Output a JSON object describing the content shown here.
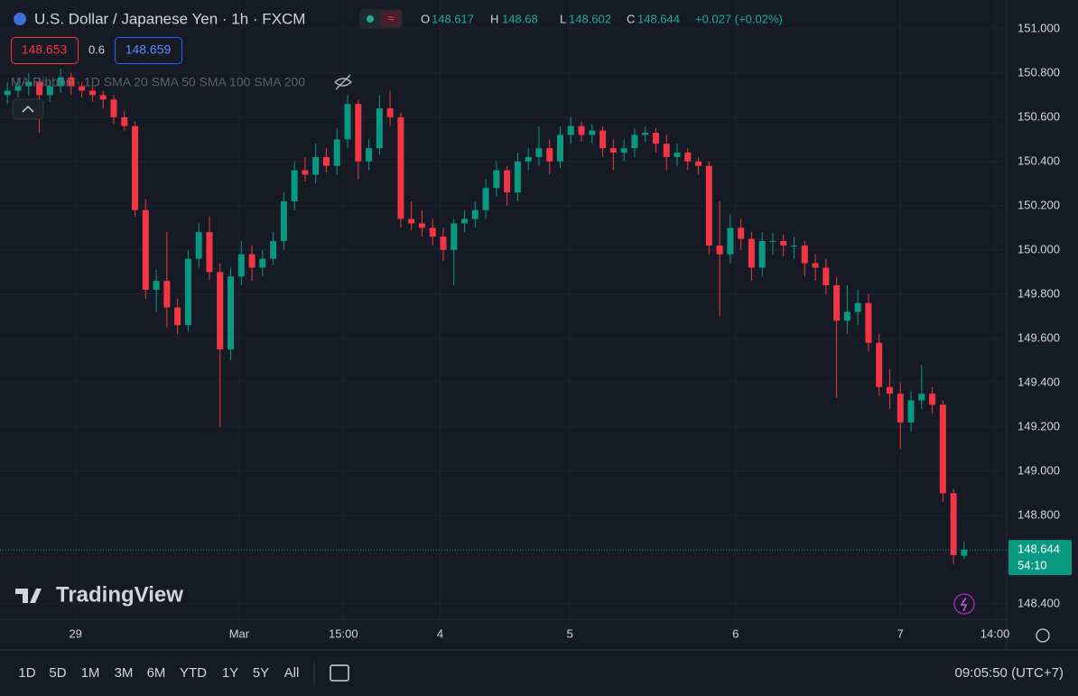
{
  "chart_data": {
    "type": "candlestick",
    "title": "U.S. Dollar / Japanese Yen · 1h · FXCM",
    "header": {
      "open_label": "O",
      "open": 148.617,
      "high_label": "H",
      "high": 148.68,
      "low_label": "L",
      "low": 148.602,
      "close_label": "C",
      "close": 148.644,
      "change": "+0.027 (+0.02%)"
    },
    "bid": "148.653",
    "spread": "0.6",
    "ask": "148.659",
    "indicator": "MA Ribbon · 1D SMA 20 SMA 50 SMA 100 SMA 200",
    "countdown": "54:10",
    "watermark": "TradingView",
    "up_color": "#089981",
    "down_color": "#f23645",
    "grid": true,
    "ylim": [
      148.33,
      151.13
    ],
    "yticks": [
      {
        "value": 151.0,
        "label": "151.000"
      },
      {
        "value": 150.8,
        "label": "150.800"
      },
      {
        "value": 150.6,
        "label": "150.600"
      },
      {
        "value": 150.4,
        "label": "150.400"
      },
      {
        "value": 150.2,
        "label": "150.200"
      },
      {
        "value": 150.0,
        "label": "150.000"
      },
      {
        "value": 149.8,
        "label": "149.800"
      },
      {
        "value": 149.6,
        "label": "149.600"
      },
      {
        "value": 149.4,
        "label": "149.400"
      },
      {
        "value": 149.2,
        "label": "149.200"
      },
      {
        "value": 149.0,
        "label": "149.000"
      },
      {
        "value": 148.8,
        "label": "148.800"
      },
      {
        "value": 148.4,
        "label": "148.400"
      }
    ],
    "xlim": [
      -0.7,
      94
    ],
    "xticks": [
      {
        "value": 6.4,
        "label": "29"
      },
      {
        "value": 21.8,
        "label": "Mar"
      },
      {
        "value": 31.6,
        "label": "15:00"
      },
      {
        "value": 40.7,
        "label": "4"
      },
      {
        "value": 52.9,
        "label": "5"
      },
      {
        "value": 68.5,
        "label": "6"
      },
      {
        "value": 84,
        "label": "7"
      },
      {
        "value": 92.9,
        "label": "14:00"
      }
    ],
    "candles": [
      [
        150.7,
        150.76,
        150.66,
        150.72
      ],
      [
        150.72,
        150.78,
        150.69,
        150.74
      ],
      [
        150.74,
        150.8,
        150.7,
        150.76
      ],
      [
        150.76,
        150.78,
        150.53,
        150.7
      ],
      [
        150.7,
        150.77,
        150.67,
        150.74
      ],
      [
        150.74,
        150.82,
        150.71,
        150.78
      ],
      [
        150.78,
        150.8,
        150.7,
        150.74
      ],
      [
        150.74,
        150.76,
        150.69,
        150.72
      ],
      [
        150.72,
        150.74,
        150.67,
        150.7
      ],
      [
        150.7,
        150.72,
        150.64,
        150.68
      ],
      [
        150.68,
        150.7,
        150.57,
        150.6
      ],
      [
        150.6,
        150.63,
        150.54,
        150.56
      ],
      [
        150.56,
        150.58,
        150.15,
        150.18
      ],
      [
        150.18,
        150.23,
        149.78,
        149.82
      ],
      [
        149.82,
        149.91,
        149.72,
        149.86
      ],
      [
        149.86,
        150.08,
        149.65,
        149.74
      ],
      [
        149.74,
        149.78,
        149.62,
        149.66
      ],
      [
        149.66,
        150.0,
        149.63,
        149.96
      ],
      [
        149.96,
        150.12,
        149.92,
        150.08
      ],
      [
        150.08,
        150.15,
        149.86,
        149.9
      ],
      [
        149.9,
        149.94,
        149.2,
        149.55
      ],
      [
        149.55,
        149.92,
        149.5,
        149.88
      ],
      [
        149.88,
        150.04,
        149.84,
        149.98
      ],
      [
        149.98,
        150.02,
        149.86,
        149.92
      ],
      [
        149.92,
        150.0,
        149.88,
        149.96
      ],
      [
        149.96,
        150.08,
        149.93,
        150.04
      ],
      [
        150.04,
        150.26,
        150.0,
        150.22
      ],
      [
        150.22,
        150.4,
        150.18,
        150.36
      ],
      [
        150.36,
        150.42,
        150.31,
        150.34
      ],
      [
        150.34,
        150.48,
        150.3,
        150.42
      ],
      [
        150.42,
        150.46,
        150.35,
        150.38
      ],
      [
        150.38,
        150.55,
        150.34,
        150.5
      ],
      [
        150.5,
        150.7,
        150.46,
        150.66
      ],
      [
        150.66,
        150.68,
        150.32,
        150.4
      ],
      [
        150.4,
        150.5,
        150.36,
        150.46
      ],
      [
        150.46,
        150.7,
        150.43,
        150.64
      ],
      [
        150.64,
        150.72,
        150.56,
        150.6
      ],
      [
        150.6,
        150.62,
        150.1,
        150.14
      ],
      [
        150.14,
        150.22,
        150.09,
        150.12
      ],
      [
        150.12,
        150.18,
        150.06,
        150.1
      ],
      [
        150.1,
        150.14,
        150.02,
        150.06
      ],
      [
        150.06,
        150.1,
        149.95,
        150.0
      ],
      [
        150.0,
        150.14,
        149.84,
        150.12
      ],
      [
        150.12,
        150.18,
        150.08,
        150.14
      ],
      [
        150.14,
        150.22,
        150.1,
        150.18
      ],
      [
        150.18,
        150.32,
        150.14,
        150.28
      ],
      [
        150.28,
        150.4,
        150.24,
        150.36
      ],
      [
        150.36,
        150.38,
        150.2,
        150.26
      ],
      [
        150.26,
        150.44,
        150.22,
        150.4
      ],
      [
        150.4,
        150.46,
        150.36,
        150.42
      ],
      [
        150.42,
        150.56,
        150.38,
        150.46
      ],
      [
        150.46,
        150.5,
        150.34,
        150.4
      ],
      [
        150.4,
        150.56,
        150.37,
        150.52
      ],
      [
        150.52,
        150.6,
        150.48,
        150.56
      ],
      [
        150.56,
        150.58,
        150.49,
        150.52
      ],
      [
        150.52,
        150.57,
        150.48,
        150.54
      ],
      [
        150.54,
        150.56,
        150.42,
        150.46
      ],
      [
        150.46,
        150.5,
        150.36,
        150.44
      ],
      [
        150.44,
        150.5,
        150.4,
        150.46
      ],
      [
        150.46,
        150.55,
        150.42,
        150.52
      ],
      [
        150.52,
        150.56,
        150.49,
        150.53
      ],
      [
        150.53,
        150.55,
        150.44,
        150.48
      ],
      [
        150.48,
        150.52,
        150.36,
        150.42
      ],
      [
        150.42,
        150.48,
        150.38,
        150.44
      ],
      [
        150.44,
        150.46,
        150.36,
        150.4
      ],
      [
        150.4,
        150.42,
        150.34,
        150.38
      ],
      [
        150.38,
        150.4,
        149.98,
        150.02
      ],
      [
        150.02,
        150.22,
        149.7,
        149.98
      ],
      [
        149.98,
        150.16,
        149.94,
        150.1
      ],
      [
        150.1,
        150.14,
        150.0,
        150.05
      ],
      [
        150.05,
        150.08,
        149.86,
        149.92
      ],
      [
        149.92,
        150.08,
        149.88,
        150.04
      ],
      [
        150.04,
        150.08,
        149.98,
        150.04
      ],
      [
        150.04,
        150.07,
        149.97,
        150.02
      ],
      [
        150.02,
        150.06,
        149.96,
        150.02
      ],
      [
        150.02,
        150.04,
        149.88,
        149.94
      ],
      [
        149.94,
        149.98,
        149.86,
        149.92
      ],
      [
        149.92,
        149.96,
        149.8,
        149.84
      ],
      [
        149.84,
        149.88,
        149.33,
        149.68
      ],
      [
        149.68,
        149.84,
        149.62,
        149.72
      ],
      [
        149.72,
        149.82,
        149.66,
        149.76
      ],
      [
        149.76,
        149.8,
        149.54,
        149.58
      ],
      [
        149.58,
        149.62,
        149.34,
        149.38
      ],
      [
        149.38,
        149.46,
        149.28,
        149.35
      ],
      [
        149.35,
        149.4,
        149.1,
        149.22
      ],
      [
        149.22,
        149.36,
        149.18,
        149.32
      ],
      [
        149.32,
        149.48,
        149.28,
        149.35
      ],
      [
        149.35,
        149.38,
        149.26,
        149.3
      ],
      [
        149.3,
        149.32,
        148.86,
        148.9
      ],
      [
        148.9,
        148.92,
        148.58,
        148.62
      ],
      [
        148.617,
        148.68,
        148.602,
        148.644
      ]
    ]
  },
  "toolbar": {
    "ranges": [
      "1D",
      "5D",
      "1M",
      "3M",
      "6M",
      "YTD",
      "1Y",
      "5Y",
      "All"
    ],
    "clock": "09:05:50 (UTC+7)"
  }
}
